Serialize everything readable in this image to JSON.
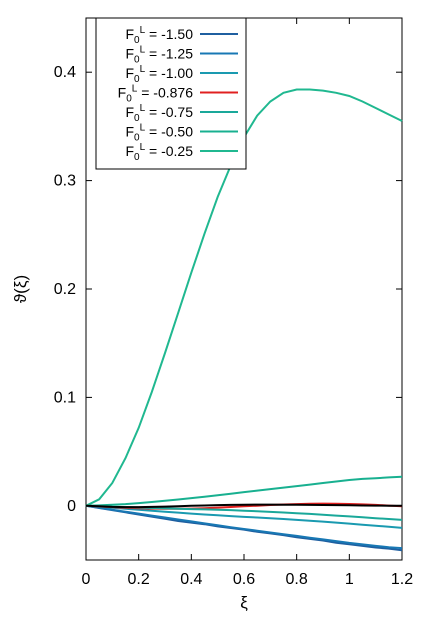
{
  "chart_data": {
    "type": "line",
    "title": "",
    "xlabel": "ξ",
    "ylabel": "ϑ(ξ)",
    "xlim": [
      0,
      1.2
    ],
    "ylim": [
      -0.05,
      0.45
    ],
    "x_ticks": [
      "0",
      "0.2",
      "0.4",
      "0.6",
      "0.8",
      "1",
      "1.2"
    ],
    "y_ticks": [
      "0",
      "0.1",
      "0.2",
      "0.3",
      "0.4"
    ],
    "grid": false,
    "legend_position": "top-left",
    "x": [
      0,
      0.05,
      0.1,
      0.15,
      0.2,
      0.25,
      0.3,
      0.35,
      0.4,
      0.45,
      0.5,
      0.55,
      0.6,
      0.65,
      0.7,
      0.75,
      0.8,
      0.85,
      0.9,
      0.95,
      1.0,
      1.05,
      1.1,
      1.15,
      1.2
    ],
    "series": [
      {
        "name": "F0^L = -1.50",
        "base": "F",
        "sub": "0",
        "sup": "L",
        "value_text": " = -1.50",
        "color": "#1f5fa0",
        "values": [
          0,
          -0.002,
          -0.004,
          -0.006,
          -0.008,
          -0.01,
          -0.012,
          -0.014,
          -0.0155,
          -0.017,
          -0.019,
          -0.0205,
          -0.022,
          -0.024,
          -0.0255,
          -0.027,
          -0.029,
          -0.0305,
          -0.032,
          -0.034,
          -0.0355,
          -0.037,
          -0.0385,
          -0.0395,
          -0.041
        ]
      },
      {
        "name": "F0^L = -1.25",
        "base": "F",
        "sub": "0",
        "sup": "L",
        "value_text": " = -1.25",
        "color": "#1878b4",
        "values": [
          0,
          -0.0018,
          -0.0036,
          -0.0054,
          -0.0072,
          -0.009,
          -0.0108,
          -0.0126,
          -0.0144,
          -0.0162,
          -0.018,
          -0.0197,
          -0.0214,
          -0.023,
          -0.0246,
          -0.0262,
          -0.0278,
          -0.0294,
          -0.031,
          -0.0326,
          -0.0342,
          -0.0356,
          -0.037,
          -0.0382,
          -0.039
        ]
      },
      {
        "name": "F0^L = -1.00",
        "base": "F",
        "sub": "0",
        "sup": "L",
        "value_text": " = -1.00",
        "color": "#1a9ab0",
        "values": [
          0,
          -0.0009,
          -0.0018,
          -0.0027,
          -0.0036,
          -0.0045,
          -0.0054,
          -0.0063,
          -0.0072,
          -0.008,
          -0.0088,
          -0.0095,
          -0.0102,
          -0.0108,
          -0.0115,
          -0.0122,
          -0.013,
          -0.0138,
          -0.0146,
          -0.0155,
          -0.0164,
          -0.0174,
          -0.0184,
          -0.0194,
          -0.0204
        ]
      },
      {
        "name": "F0^L = -0.876",
        "base": "F",
        "sub": "0",
        "sup": "L",
        "value_text": " = -0.876",
        "color": "#e02020",
        "values": [
          0,
          -0.0006,
          -0.0012,
          -0.0018,
          -0.0023,
          -0.0026,
          -0.0028,
          -0.0028,
          -0.0026,
          -0.0022,
          -0.0017,
          -0.0011,
          -0.0005,
          0.0001,
          0.0007,
          0.0012,
          0.0016,
          0.0019,
          0.002,
          0.0019,
          0.0017,
          0.0013,
          0.0008,
          0.0002,
          -0.0005
        ]
      },
      {
        "name": "F0^L = -0.75",
        "base": "F",
        "sub": "0",
        "sup": "L",
        "value_text": " = -0.75",
        "color": "#1aa89a",
        "values": [
          0,
          -0.0004,
          -0.0008,
          -0.0012,
          -0.0016,
          -0.002,
          -0.0024,
          -0.0027,
          -0.003,
          -0.0033,
          -0.0036,
          -0.004,
          -0.0045,
          -0.005,
          -0.0056,
          -0.0062,
          -0.0068,
          -0.0075,
          -0.0082,
          -0.009,
          -0.0098,
          -0.0106,
          -0.0114,
          -0.0122,
          -0.013
        ]
      },
      {
        "name": "F0^L = -0.50",
        "base": "F",
        "sub": "0",
        "sup": "L",
        "value_text": " = -0.50",
        "color": "#18b090",
        "values": [
          0,
          0.0004,
          0.0009,
          0.0016,
          0.0025,
          0.0035,
          0.0046,
          0.0058,
          0.0071,
          0.0084,
          0.0098,
          0.0112,
          0.0126,
          0.014,
          0.0154,
          0.0168,
          0.0182,
          0.0196,
          0.021,
          0.0224,
          0.0238,
          0.0248,
          0.0255,
          0.0262,
          0.0268
        ]
      },
      {
        "name": "F0^L = -0.25",
        "base": "F",
        "sub": "0",
        "sup": "L",
        "value_text": " = -0.25",
        "color": "#20b890",
        "values": [
          0,
          0.006,
          0.021,
          0.044,
          0.072,
          0.105,
          0.141,
          0.178,
          0.215,
          0.251,
          0.285,
          0.314,
          0.34,
          0.36,
          0.373,
          0.381,
          0.384,
          0.384,
          0.383,
          0.381,
          0.378,
          0.373,
          0.367,
          0.361,
          0.355
        ]
      },
      {
        "name": "",
        "base": "",
        "sub": "",
        "sup": "",
        "value_text": "",
        "color": "#000000",
        "legend": false,
        "values": [
          0,
          -0.0005,
          -0.001,
          -0.0012,
          -0.0012,
          -0.001,
          -0.0007,
          -0.0004,
          0,
          0.0003,
          0.0006,
          0.0008,
          0.001,
          0.0011,
          0.0011,
          0.001,
          0.0009,
          0.0008,
          0.0007,
          0.0006,
          0.0005,
          0.0003,
          0.0002,
          0.0001,
          0
        ]
      }
    ]
  }
}
